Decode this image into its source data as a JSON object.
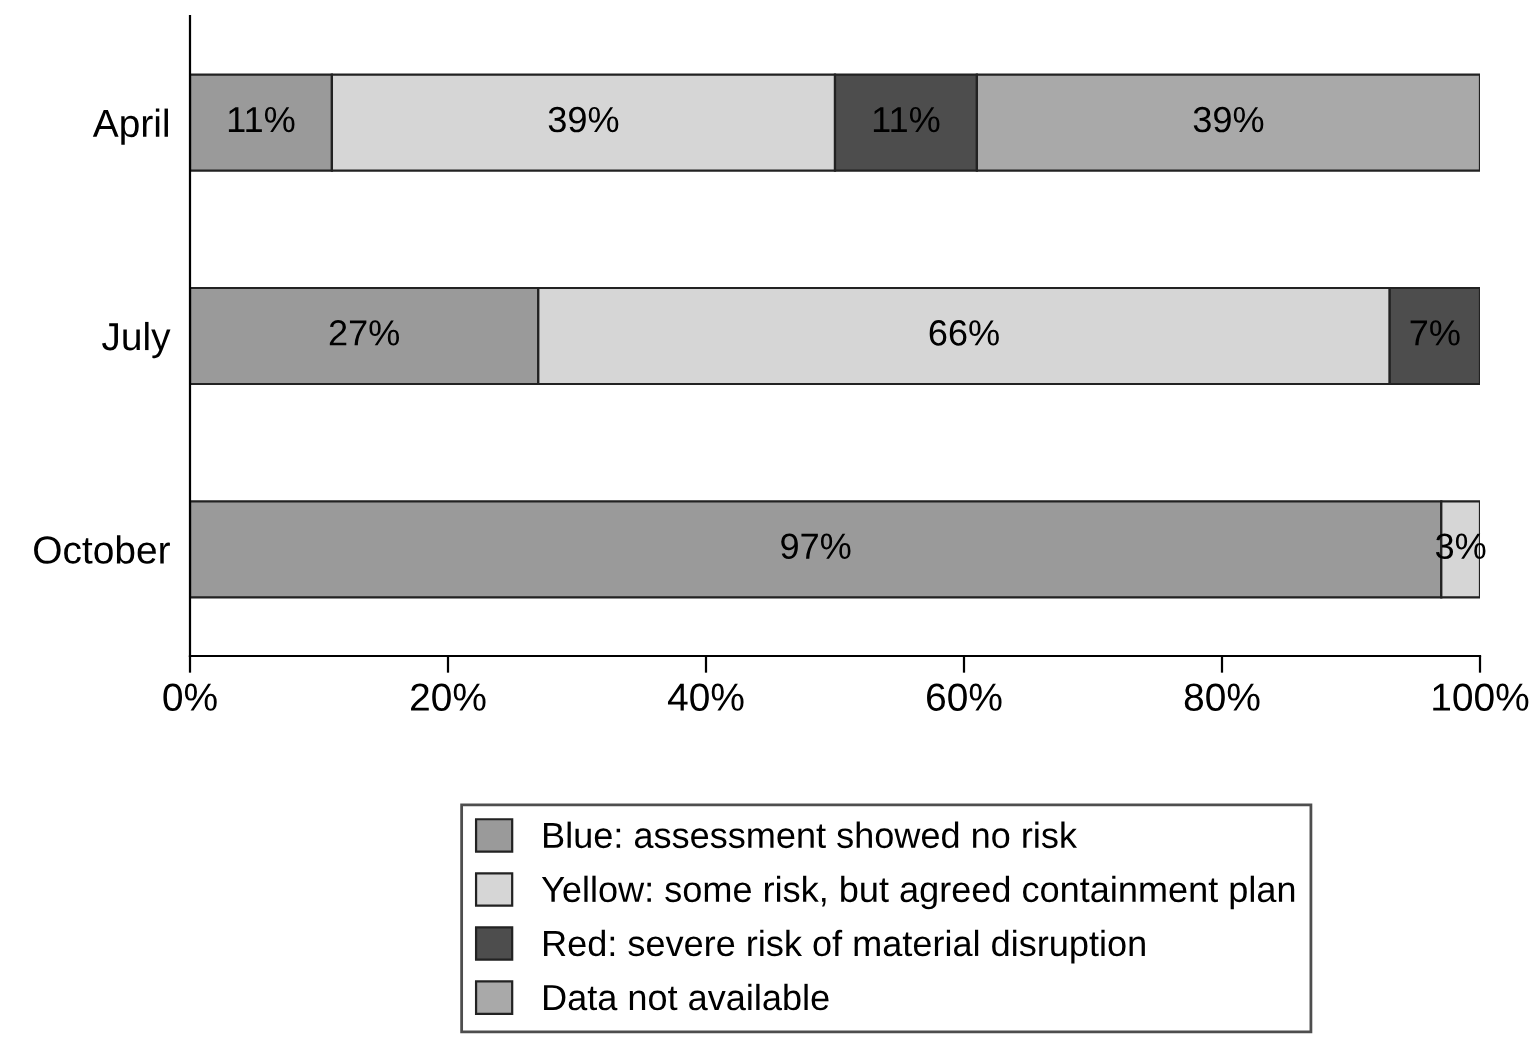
{
  "chart_data": {
    "type": "bar",
    "orientation": "horizontal",
    "stacked": true,
    "categories": [
      "April",
      "July",
      "October"
    ],
    "series": [
      {
        "name": "Blue: assessment showed no risk",
        "color": "#9a9a9a",
        "values": [
          11,
          27,
          97
        ],
        "value_labels": [
          "11%",
          "27%",
          "97%"
        ]
      },
      {
        "name": "Yellow: some risk, but agreed containment plan",
        "color": "#d6d6d6",
        "values": [
          39,
          66,
          3
        ],
        "value_labels": [
          "39%",
          "66%",
          "3%"
        ]
      },
      {
        "name": "Red: severe risk of material disruption",
        "color": "#4d4d4d",
        "values": [
          11,
          7,
          null
        ],
        "value_labels": [
          "11%",
          "7%",
          null
        ]
      },
      {
        "name": "Data not available",
        "color": "#a9a9a9",
        "values": [
          39,
          null,
          null
        ],
        "value_labels": [
          "39%",
          null,
          null
        ]
      }
    ],
    "xlim": [
      0,
      100
    ],
    "xticks": [
      {
        "value": 0,
        "label": "0%"
      },
      {
        "value": 20,
        "label": "20%"
      },
      {
        "value": 40,
        "label": "40%"
      },
      {
        "value": 60,
        "label": "60%"
      },
      {
        "value": 80,
        "label": "80%"
      },
      {
        "value": 100,
        "label": "100%"
      }
    ],
    "legend": "bottom",
    "grid": false
  }
}
